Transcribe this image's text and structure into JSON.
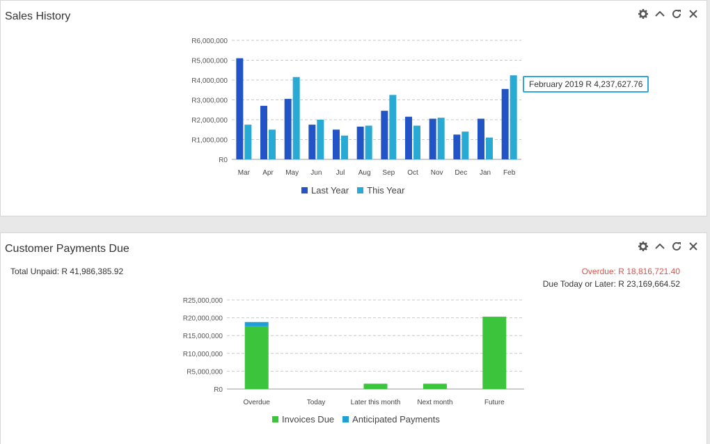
{
  "sales_history": {
    "title": "Sales History",
    "tooltip": "February 2019 R 4,237,627.76",
    "icons": [
      "gear-icon",
      "chevron-up-icon",
      "refresh-icon",
      "close-icon"
    ]
  },
  "customer_payments": {
    "title": "Customer Payments Due",
    "total_unpaid": "Total Unpaid: R 41,986,385.92",
    "overdue": "Overdue: R 18,816,721.40",
    "due_later": "Due Today or Later: R 23,169,664.52",
    "icons": [
      "gear-icon",
      "chevron-up-icon",
      "refresh-icon",
      "close-icon"
    ]
  },
  "colors": {
    "last_year": "#2354c6",
    "this_year": "#29aad4",
    "invoices_due": "#3cc43c",
    "anticipated": "#1e9fd6",
    "overdue_text": "#d9534f"
  },
  "chart_data": [
    {
      "type": "bar",
      "categories": [
        "Mar",
        "Apr",
        "May",
        "Jun",
        "Jul",
        "Aug",
        "Sep",
        "Oct",
        "Nov",
        "Dec",
        "Jan",
        "Feb"
      ],
      "series": [
        {
          "name": "Last Year",
          "values": [
            5100000,
            2700000,
            3050000,
            1750000,
            1500000,
            1650000,
            2450000,
            2150000,
            2050000,
            1250000,
            2050000,
            3550000
          ]
        },
        {
          "name": "This Year",
          "values": [
            1750000,
            1500000,
            4150000,
            2000000,
            1200000,
            1700000,
            3250000,
            1700000,
            2100000,
            1400000,
            1100000,
            4237627.76
          ]
        }
      ],
      "yticks": [
        "R0",
        "R1,000,000",
        "R2,000,000",
        "R3,000,000",
        "R4,000,000",
        "R5,000,000",
        "R6,000,000"
      ],
      "ylim": [
        0,
        6000000
      ],
      "grid": true,
      "legend": "bottom"
    },
    {
      "type": "bar",
      "stacked": true,
      "categories": [
        "Overdue",
        "Today",
        "Later this month",
        "Next month",
        "Future"
      ],
      "series": [
        {
          "name": "Invoices Due",
          "values": [
            17600000,
            0,
            1500000,
            1500000,
            20300000
          ]
        },
        {
          "name": "Anticipated Payments",
          "values": [
            1200000,
            0,
            0,
            0,
            0
          ]
        }
      ],
      "yticks": [
        "R0",
        "R5,000,000",
        "R10,000,000",
        "R15,000,000",
        "R20,000,000",
        "R25,000,000"
      ],
      "ylim": [
        0,
        25000000
      ],
      "grid": true,
      "legend": "bottom"
    }
  ]
}
